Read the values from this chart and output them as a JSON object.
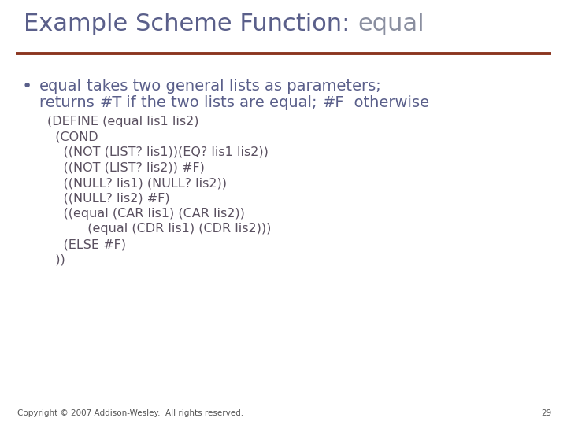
{
  "title_normal": "Example Scheme Function: ",
  "title_code": "equal",
  "title_normal_color": "#5a5f8a",
  "title_code_color": "#8a8fa0",
  "separator_color": "#8b3520",
  "background_color": "#ffffff",
  "bullet_color": "#5a5f8a",
  "code_color": "#5a5060",
  "footer_text": "Copyright © 2007 Addison-Wesley.  All rights reserved.",
  "footer_page": "29",
  "title_fontsize": 22,
  "bullet_fontsize": 14,
  "code_fontsize": 11.5,
  "footer_fontsize": 7.5,
  "code_lines": [
    "(DEFINE (equal lis1 lis2)",
    "  (COND",
    "    ((NOT (LIST? lis1))(EQ? lis1 lis2))",
    "    ((NOT (LIST? lis2)) #F)",
    "    ((NULL? lis1) (NULL? lis2))",
    "    ((NULL? lis2) #F)",
    "    ((equal (CAR lis1) (CAR lis2))",
    "          (equal (CDR lis1) (CDR lis2)))",
    "    (ELSE #F)",
    "  ))"
  ]
}
